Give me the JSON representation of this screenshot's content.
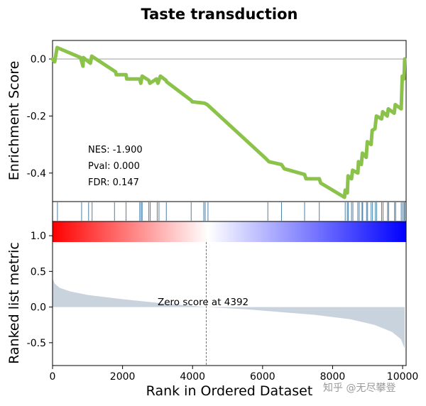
{
  "watermark": "知乎 @无尽攀登",
  "colors": {
    "es_line": "#8bc34a",
    "hits": "#4a7fa8",
    "metric_fill": "#c8d3de",
    "zero_line": "#b0b0b0",
    "grad_pos": "#ff0000",
    "grad_neg": "#0000ff"
  },
  "chart_data": {
    "type": "line",
    "title": "Taste transduction",
    "xlabel": "Rank in Ordered Dataset",
    "xlim": [
      0,
      10100
    ],
    "xticks": [
      "0",
      "2000",
      "4000",
      "6000",
      "8000",
      "10000"
    ],
    "top": {
      "ylabel": "Enrichment Score",
      "ylim": [
        -0.5,
        0.065
      ],
      "yticks": [
        "0.0",
        "-0.2",
        "-0.4"
      ],
      "stats": [
        "NES: -1.900",
        "Pval: 0.000",
        "FDR: 0.147"
      ],
      "running_es": [
        [
          0,
          0.0
        ],
        [
          60,
          -0.01
        ],
        [
          130,
          0.04
        ],
        [
          800,
          0.005
        ],
        [
          870,
          -0.025
        ],
        [
          880,
          0.005
        ],
        [
          1080,
          -0.015
        ],
        [
          1120,
          0.01
        ],
        [
          1800,
          -0.045
        ],
        [
          1820,
          -0.055
        ],
        [
          2100,
          -0.055
        ],
        [
          2120,
          -0.07
        ],
        [
          2490,
          -0.07
        ],
        [
          2520,
          -0.085
        ],
        [
          2560,
          -0.06
        ],
        [
          2750,
          -0.075
        ],
        [
          2780,
          -0.085
        ],
        [
          2970,
          -0.07
        ],
        [
          3010,
          -0.085
        ],
        [
          3080,
          -0.06
        ],
        [
          3240,
          -0.075
        ],
        [
          3260,
          -0.08
        ],
        [
          3960,
          -0.145
        ],
        [
          3990,
          -0.15
        ],
        [
          4340,
          -0.155
        ],
        [
          4420,
          -0.16
        ],
        [
          6100,
          -0.35
        ],
        [
          6180,
          -0.36
        ],
        [
          6540,
          -0.37
        ],
        [
          6620,
          -0.385
        ],
        [
          7200,
          -0.405
        ],
        [
          7240,
          -0.42
        ],
        [
          7620,
          -0.42
        ],
        [
          7660,
          -0.435
        ],
        [
          8340,
          -0.485
        ],
        [
          8360,
          -0.46
        ],
        [
          8420,
          -0.47
        ],
        [
          8440,
          -0.41
        ],
        [
          8540,
          -0.42
        ],
        [
          8570,
          -0.39
        ],
        [
          8720,
          -0.4
        ],
        [
          8740,
          -0.36
        ],
        [
          8820,
          -0.37
        ],
        [
          8850,
          -0.33
        ],
        [
          8960,
          -0.345
        ],
        [
          8990,
          -0.29
        ],
        [
          9100,
          -0.3
        ],
        [
          9130,
          -0.25
        ],
        [
          9210,
          -0.245
        ],
        [
          9250,
          -0.2
        ],
        [
          9400,
          -0.21
        ],
        [
          9430,
          -0.185
        ],
        [
          9560,
          -0.2
        ],
        [
          9590,
          -0.175
        ],
        [
          9760,
          -0.19
        ],
        [
          9790,
          -0.16
        ],
        [
          9960,
          -0.175
        ],
        [
          9990,
          -0.06
        ],
        [
          10040,
          -0.07
        ],
        [
          10060,
          0.0
        ]
      ]
    },
    "hits": [
      140,
      830,
      1030,
      1130,
      1770,
      2100,
      2490,
      2530,
      2560,
      2750,
      2790,
      2990,
      3040,
      3250,
      3960,
      4320,
      4360,
      4440,
      6150,
      6540,
      7200,
      7620,
      8360,
      8420,
      8450,
      8540,
      8580,
      8720,
      8760,
      8840,
      8860,
      8970,
      9000,
      9100,
      9140,
      9220,
      9260,
      9400,
      9440,
      9570,
      9600,
      9770,
      9800,
      9960,
      10000,
      10040,
      10060
    ],
    "bottom": {
      "ylabel": "Ranked list metric",
      "ylim": [
        -0.82,
        1.2
      ],
      "yticks": [
        "1.0",
        "0.5",
        "0.0",
        "-0.5"
      ],
      "zero_cross_rank": 4392,
      "annotation": "Zero score at 4392",
      "metric_curve": [
        [
          0,
          0.4
        ],
        [
          60,
          0.33
        ],
        [
          200,
          0.27
        ],
        [
          500,
          0.22
        ],
        [
          1000,
          0.17
        ],
        [
          2000,
          0.11
        ],
        [
          3000,
          0.06
        ],
        [
          4392,
          0.0
        ],
        [
          5500,
          -0.03
        ],
        [
          6500,
          -0.07
        ],
        [
          7500,
          -0.11
        ],
        [
          8500,
          -0.17
        ],
        [
          9200,
          -0.25
        ],
        [
          9700,
          -0.35
        ],
        [
          9950,
          -0.45
        ],
        [
          10060,
          -0.58
        ]
      ]
    }
  }
}
